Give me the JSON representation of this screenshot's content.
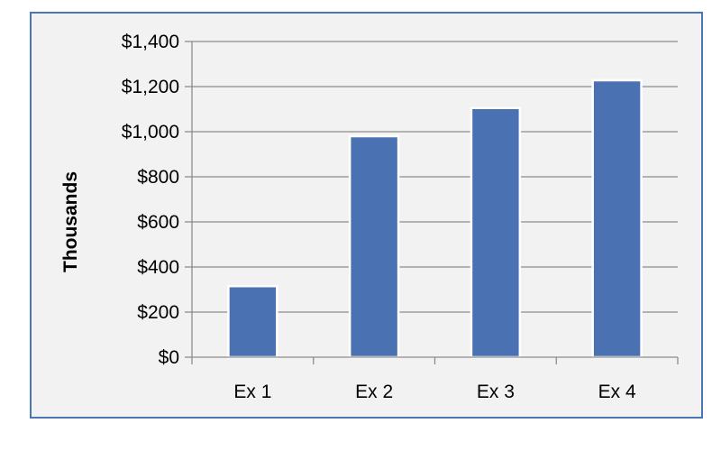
{
  "chart_data": {
    "type": "bar",
    "categories": [
      "Ex 1",
      "Ex 2",
      "Ex 3",
      "Ex 4"
    ],
    "values": [
      315,
      980,
      1105,
      1228
    ],
    "ylabel": "Thousands",
    "xlabel": "",
    "title": "",
    "ylim": [
      0,
      1400
    ],
    "yticks": [
      0,
      200,
      400,
      600,
      800,
      1000,
      1200,
      1400
    ],
    "ytick_labels": [
      "$0",
      "$200",
      "$400",
      "$600",
      "$800",
      "$1,000",
      "$1,200",
      "$1,400"
    ],
    "grid": true,
    "legend": "none",
    "colors": {
      "bar": "#4a72b2",
      "bar_edge": "#ffffff",
      "frame_border": "#4a76b5",
      "background": "#f2f2f2",
      "grid": "#8c8c8c",
      "axis": "#8c8c8c"
    }
  }
}
